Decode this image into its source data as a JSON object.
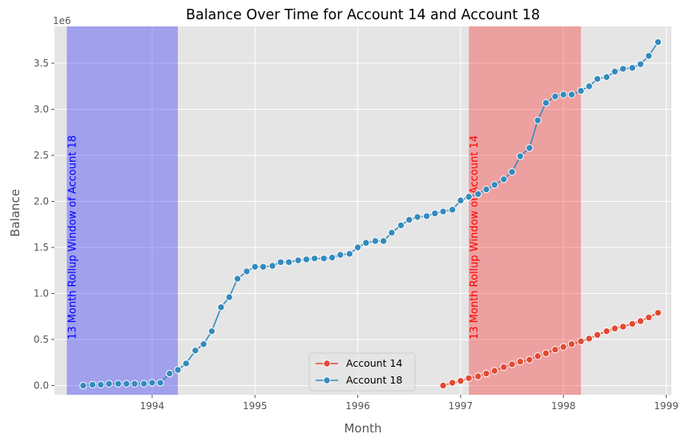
{
  "chart_data": {
    "type": "line",
    "title": "Balance Over Time for Account 14 and Account 18",
    "xlabel": "Month",
    "ylabel": "Balance",
    "y_offset_label": "1e6",
    "xlim": [
      1993.05,
      1999.05
    ],
    "ylim": [
      -0.1,
      3.9
    ],
    "x_ticks": [
      1994,
      1995,
      1996,
      1997,
      1998,
      1999
    ],
    "x_tick_labels": [
      "1994",
      "1995",
      "1996",
      "1997",
      "1998",
      "1999"
    ],
    "y_ticks": [
      0.0,
      0.5,
      1.0,
      1.5,
      2.0,
      2.5,
      3.0,
      3.5
    ],
    "y_tick_labels": [
      "0.0",
      "0.5",
      "1.0",
      "1.5",
      "2.0",
      "2.5",
      "3.0",
      "3.5"
    ],
    "grid": true,
    "legend_position": "bottom-center",
    "shaded_regions": [
      {
        "start": 1993.17,
        "end": 1994.25,
        "color": "#0000ff",
        "label": "13 Month Rollup Window of Account 18",
        "text_color": "#0000ff"
      },
      {
        "start": 1997.08,
        "end": 1998.17,
        "color": "#ff0000",
        "label": "13 Month Rollup Window of Account 14",
        "text_color": "#ff0000"
      }
    ],
    "series": [
      {
        "name": "Account 14",
        "color": "#e24a33",
        "x": [
          1996.83,
          1996.92,
          1997.0,
          1997.08,
          1997.17,
          1997.25,
          1997.33,
          1997.42,
          1997.5,
          1997.58,
          1997.67,
          1997.75,
          1997.83,
          1997.92,
          1998.0,
          1998.08,
          1998.17,
          1998.25,
          1998.33,
          1998.42,
          1998.5,
          1998.58,
          1998.67,
          1998.75,
          1998.83,
          1998.92
        ],
        "values": [
          0.0,
          0.03,
          0.05,
          0.08,
          0.1,
          0.13,
          0.16,
          0.2,
          0.23,
          0.26,
          0.28,
          0.32,
          0.35,
          0.39,
          0.42,
          0.45,
          0.48,
          0.51,
          0.55,
          0.59,
          0.62,
          0.64,
          0.67,
          0.7,
          0.74,
          0.79
        ]
      },
      {
        "name": "Account 18",
        "color": "#348abd",
        "x": [
          1993.33,
          1993.42,
          1993.5,
          1993.58,
          1993.67,
          1993.75,
          1993.83,
          1993.92,
          1994.0,
          1994.08,
          1994.17,
          1994.25,
          1994.33,
          1994.42,
          1994.5,
          1994.58,
          1994.67,
          1994.75,
          1994.83,
          1994.92,
          1995.0,
          1995.08,
          1995.17,
          1995.25,
          1995.33,
          1995.42,
          1995.5,
          1995.58,
          1995.67,
          1995.75,
          1995.83,
          1995.92,
          1996.0,
          1996.08,
          1996.17,
          1996.25,
          1996.33,
          1996.42,
          1996.5,
          1996.58,
          1996.67,
          1996.75,
          1996.83,
          1996.92,
          1997.0,
          1997.08,
          1997.17,
          1997.25,
          1997.33,
          1997.42,
          1997.5,
          1997.58,
          1997.67,
          1997.75,
          1997.83,
          1997.92,
          1998.0,
          1998.08,
          1998.17,
          1998.25,
          1998.33,
          1998.42,
          1998.5,
          1998.58,
          1998.67,
          1998.75,
          1998.83,
          1998.92
        ],
        "values": [
          0.0,
          0.01,
          0.01,
          0.02,
          0.02,
          0.02,
          0.02,
          0.02,
          0.03,
          0.03,
          0.13,
          0.17,
          0.24,
          0.38,
          0.45,
          0.59,
          0.85,
          0.96,
          1.16,
          1.24,
          1.29,
          1.29,
          1.3,
          1.34,
          1.34,
          1.36,
          1.37,
          1.38,
          1.38,
          1.39,
          1.42,
          1.43,
          1.5,
          1.55,
          1.57,
          1.57,
          1.66,
          1.74,
          1.8,
          1.83,
          1.84,
          1.87,
          1.89,
          1.91,
          2.01,
          2.05,
          2.08,
          2.13,
          2.18,
          2.24,
          2.32,
          2.49,
          2.58,
          2.88,
          3.07,
          3.14,
          3.16,
          3.16,
          3.2,
          3.25,
          3.33,
          3.35,
          3.41,
          3.44,
          3.45,
          3.49,
          3.58,
          3.73
        ]
      }
    ]
  }
}
